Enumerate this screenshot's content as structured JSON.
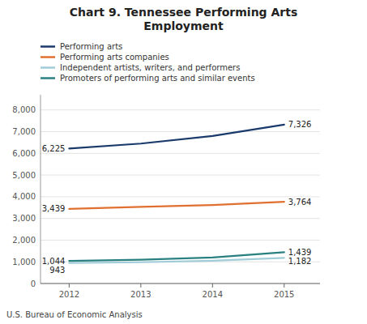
{
  "chart_data": {
    "type": "line",
    "title": "Chart 9. Tennessee Performing Arts\nEmployment",
    "x": [
      2012,
      2013,
      2014,
      2015
    ],
    "xlim": [
      2011.6,
      2015.5
    ],
    "xticks": [
      2012,
      2013,
      2014,
      2015
    ],
    "ylim": [
      0,
      8700
    ],
    "yticks": [
      0,
      {
        "value": 1000,
        "label": "1,000"
      },
      {
        "value": 2000,
        "label": "2,000"
      },
      {
        "value": 3000,
        "label": "3,000"
      },
      {
        "value": 4000,
        "label": "4,000"
      },
      {
        "value": 5000,
        "label": "5,000"
      },
      {
        "value": 6000,
        "label": "6,000"
      },
      {
        "value": 7000,
        "label": "7,000"
      },
      {
        "value": 8000,
        "label": "8,000"
      }
    ],
    "grid": true,
    "legend": "upper left",
    "footer": "U.S. Bureau of Economic Analysis",
    "series": [
      {
        "name": "Performing arts",
        "color": "#1a3a6b",
        "values": [
          6225,
          6450,
          6800,
          7326
        ],
        "value_labels": [
          "6,225",
          null,
          null,
          "7,326"
        ]
      },
      {
        "name": "Performing arts companies",
        "color": "#e07030",
        "values": [
          3439,
          3530,
          3620,
          3764
        ],
        "value_labels": [
          "3,439",
          null,
          null,
          "3,764"
        ]
      },
      {
        "name": "Independent artists, writers, and performers",
        "color": "#a0cdd8",
        "values": [
          943,
          980,
          1050,
          1182
        ],
        "value_labels": [
          "943",
          null,
          null,
          "1,182"
        ]
      },
      {
        "name": "Promoters of performing arts and similar events",
        "color": "#2a8080",
        "values": [
          1044,
          1100,
          1200,
          1439
        ],
        "value_labels": [
          "1,044",
          null,
          null,
          "1,439"
        ]
      }
    ]
  }
}
